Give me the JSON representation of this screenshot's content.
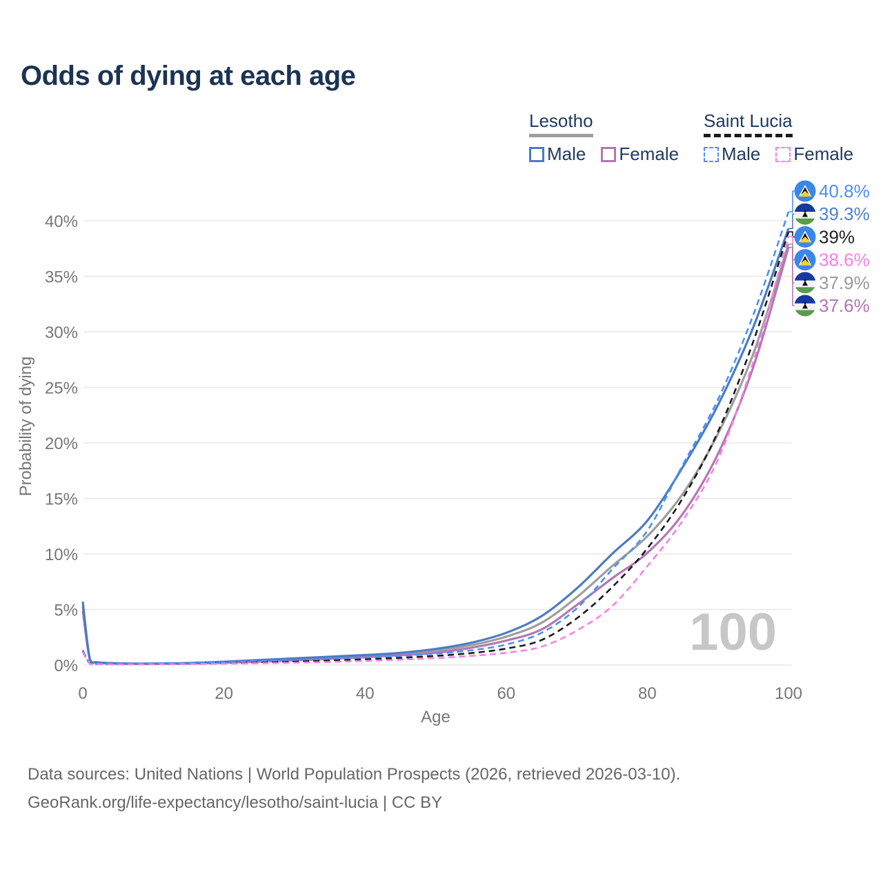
{
  "title": "Odds of dying at each age",
  "watermark": "100",
  "legend": {
    "groups": [
      {
        "name": "Lesotho",
        "style": "solid",
        "underline_color": "#9e9e9e",
        "items": [
          {
            "label": "Male",
            "color": "#4a7bc4"
          },
          {
            "label": "Female",
            "color": "#b476b4"
          }
        ]
      },
      {
        "name": "Saint Lucia",
        "style": "dashed",
        "underline_color": "#1a1a1a",
        "items": [
          {
            "label": "Male",
            "color": "#4a90f7"
          },
          {
            "label": "Female",
            "color": "#f97ee8"
          }
        ]
      }
    ]
  },
  "footer": {
    "line1": "Data sources: United Nations | World Population Prospects (2026, retrieved 2026-03-10).",
    "line2": "GeoRank.org/life-expectancy/lesotho/saint-lucia | CC BY"
  },
  "chart_data": {
    "type": "line",
    "title": "Odds of dying at each age",
    "xlabel": "Age",
    "ylabel": "Probability of dying",
    "xlim": [
      0,
      100
    ],
    "ylim": [
      0,
      40
    ],
    "x_ticks": [
      0,
      20,
      40,
      60,
      80,
      100
    ],
    "y_ticks": [
      {
        "value": 0,
        "label": "0%"
      },
      {
        "value": 5,
        "label": "5%"
      },
      {
        "value": 10,
        "label": "10%"
      },
      {
        "value": 15,
        "label": "15%"
      },
      {
        "value": 20,
        "label": "20%"
      },
      {
        "value": 25,
        "label": "25%"
      },
      {
        "value": 30,
        "label": "30%"
      },
      {
        "value": 35,
        "label": "35%"
      },
      {
        "value": 40,
        "label": "40%"
      }
    ],
    "grid": "horizontal-only",
    "legend_position": "top-right",
    "ages": [
      0,
      1,
      2,
      5,
      10,
      15,
      20,
      25,
      30,
      35,
      40,
      45,
      50,
      55,
      60,
      65,
      70,
      75,
      80,
      85,
      90,
      95,
      100
    ],
    "series": [
      {
        "name": "Lesotho",
        "country": "Lesotho",
        "sex": "both",
        "color": "#9e9e9e",
        "dashed": false,
        "flag": "lesotho",
        "end_label": "37.9%",
        "label_color": "#9a9a9a",
        "values": [
          5.3,
          0.52,
          0.24,
          0.13,
          0.11,
          0.15,
          0.25,
          0.37,
          0.5,
          0.65,
          0.8,
          1.0,
          1.28,
          1.78,
          2.55,
          3.8,
          6.1,
          8.9,
          11.6,
          15.4,
          20.8,
          28.0,
          37.9
        ]
      },
      {
        "name": "Lesotho Female",
        "country": "Lesotho",
        "sex": "female",
        "color": "#b476b4",
        "dashed": false,
        "flag": "lesotho",
        "end_label": "37.6%",
        "label_color": "#b573b5",
        "values": [
          4.9,
          0.48,
          0.22,
          0.12,
          0.1,
          0.13,
          0.2,
          0.3,
          0.42,
          0.55,
          0.7,
          0.88,
          1.1,
          1.55,
          2.2,
          3.2,
          5.4,
          7.8,
          10.1,
          13.6,
          19.0,
          26.8,
          37.6
        ]
      },
      {
        "name": "Lesotho Male",
        "country": "Lesotho",
        "sex": "male",
        "color": "#4a7bc4",
        "dashed": false,
        "flag": "lesotho",
        "end_label": "39.3%",
        "label_color": "#4d82cf",
        "values": [
          5.7,
          0.55,
          0.25,
          0.15,
          0.13,
          0.18,
          0.3,
          0.45,
          0.6,
          0.75,
          0.9,
          1.1,
          1.45,
          2.0,
          2.9,
          4.4,
          6.9,
          10.0,
          13.0,
          17.8,
          23.4,
          30.4,
          39.3
        ]
      },
      {
        "name": "Saint Lucia",
        "country": "Saint Lucia",
        "sex": "both",
        "color": "#1a1a1a",
        "dashed": true,
        "flag": "saint-lucia",
        "end_label": "39%",
        "label_color": "#222222",
        "values": [
          1.25,
          0.13,
          0.09,
          0.07,
          0.08,
          0.12,
          0.19,
          0.26,
          0.33,
          0.42,
          0.52,
          0.65,
          0.82,
          1.07,
          1.48,
          2.25,
          4.2,
          7.0,
          10.5,
          15.0,
          21.0,
          29.1,
          39.0
        ]
      },
      {
        "name": "Saint Lucia Male",
        "country": "Saint Lucia",
        "sex": "male",
        "color": "#4a90f7",
        "dashed": true,
        "flag": "saint-lucia",
        "end_label": "40.8%",
        "label_color": "#4a90f7",
        "values": [
          1.35,
          0.14,
          0.1,
          0.08,
          0.1,
          0.16,
          0.26,
          0.36,
          0.46,
          0.56,
          0.68,
          0.82,
          1.02,
          1.32,
          1.85,
          2.9,
          5.1,
          8.6,
          12.1,
          18.0,
          23.9,
          31.5,
          40.8
        ]
      },
      {
        "name": "Saint Lucia Female",
        "country": "Saint Lucia",
        "sex": "female",
        "color": "#f97ee8",
        "dashed": true,
        "flag": "saint-lucia",
        "end_label": "38.6%",
        "label_color": "#f97ee8",
        "values": [
          1.15,
          0.11,
          0.08,
          0.06,
          0.07,
          0.09,
          0.12,
          0.16,
          0.21,
          0.28,
          0.37,
          0.48,
          0.62,
          0.82,
          1.1,
          1.65,
          3.1,
          5.3,
          8.9,
          13.0,
          18.5,
          27.3,
          38.6
        ]
      }
    ]
  }
}
